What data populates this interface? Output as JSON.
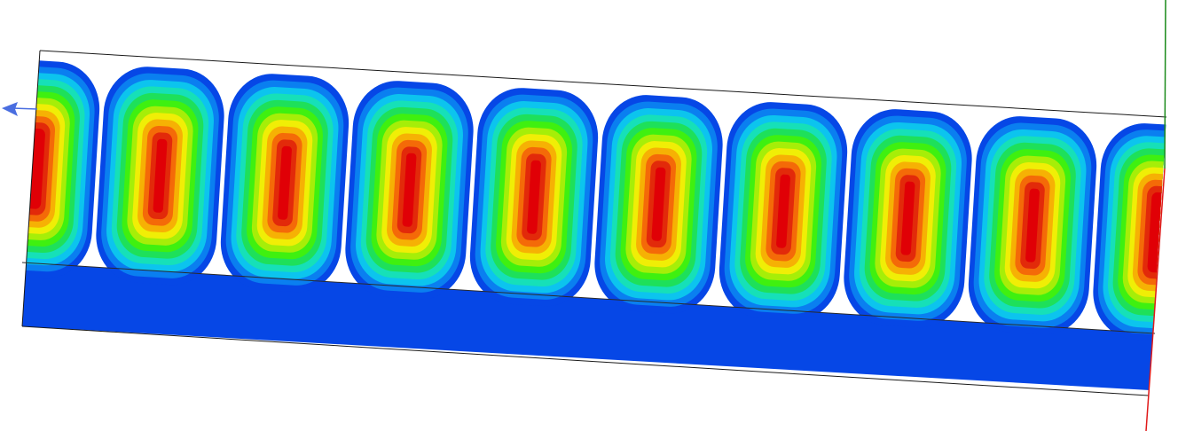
{
  "scene": {
    "description_hidden": "",
    "background_color": "#ffffff",
    "frame_line_color": "#1a1a1a",
    "field_base_color": "#0647e6",
    "color_scale": [
      "#0647e6",
      "#0a7ff0",
      "#0cc4ee",
      "#16e0b8",
      "#1ee05a",
      "#3ff010",
      "#a6ee08",
      "#f0ee06",
      "#f6b104",
      "#f46a08",
      "#e22a0a",
      "#e00006"
    ],
    "hotspot_count": 10,
    "hotspot_values": [
      0.95,
      1.0,
      1.0,
      1.0,
      1.0,
      1.0,
      1.0,
      1.0,
      1.0,
      0.95
    ],
    "axes": {
      "x_axis_color": "#4a6ee0",
      "y_axis_color": "#1a8a1a",
      "z_axis_color": "#e01a1a"
    }
  }
}
